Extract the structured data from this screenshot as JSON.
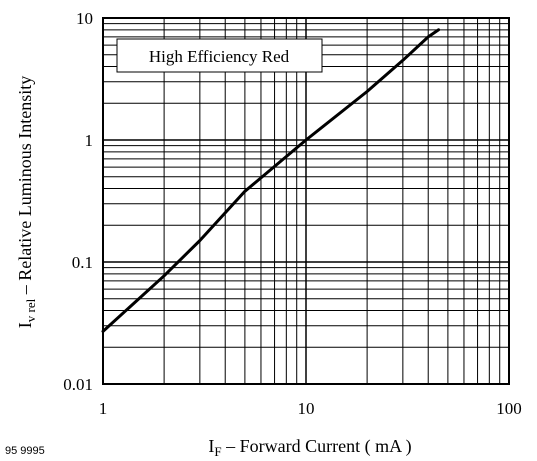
{
  "figure_id": "95 9995",
  "chart_data": {
    "type": "line",
    "xscale": "log",
    "yscale": "log",
    "xlim": [
      1,
      100
    ],
    "ylim": [
      0.01,
      10
    ],
    "xticks": [
      "1",
      "10",
      "100"
    ],
    "yticks": [
      "0.01",
      "0.1",
      "1",
      "10"
    ],
    "xlabel": {
      "main": "I",
      "sub": "F",
      "rest": " – Forward Current ( mA )"
    },
    "ylabel": {
      "main": "I",
      "sub": "v rel",
      "rest": "  – Relative Luminous Intensity"
    },
    "grid": true,
    "series": [
      {
        "name": "High Efficiency Red",
        "color": "#000000",
        "x": [
          1,
          2,
          3,
          5,
          10,
          20,
          30,
          40,
          45
        ],
        "y": [
          0.027,
          0.077,
          0.15,
          0.38,
          1.0,
          2.5,
          4.5,
          7.0,
          8.0
        ]
      }
    ]
  }
}
